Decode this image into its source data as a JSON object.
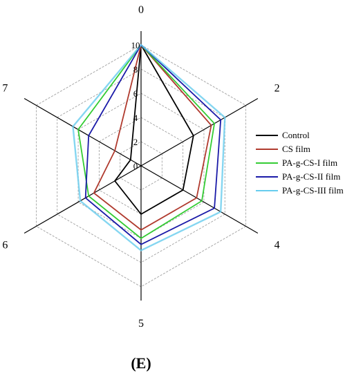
{
  "chart_data": {
    "type": "radar",
    "panel_label": "(E)",
    "axes": [
      "0",
      "2",
      "4",
      "5",
      "6",
      "7"
    ],
    "ticks": [
      "0",
      "2",
      "4",
      "6",
      "8",
      "10"
    ],
    "rlim": [
      0,
      10
    ],
    "legend": {
      "placement": "right"
    },
    "series": [
      {
        "name": "Control",
        "color": "#000000",
        "values": [
          10,
          5,
          4,
          4,
          2.5,
          1
        ]
      },
      {
        "name": "CS film",
        "color": "#b03a2e",
        "values": [
          10,
          6.7,
          5.3,
          5.3,
          4.5,
          2.5
        ]
      },
      {
        "name": "PA-g-CS-I film",
        "color": "#33cc33",
        "values": [
          10,
          7,
          5.8,
          6,
          5,
          6
        ]
      },
      {
        "name": "PA-g-CS-II film",
        "color": "#1a1aa8",
        "values": [
          10,
          7.6,
          7,
          6.5,
          5.3,
          5
        ]
      },
      {
        "name": "PA-g-CS-III film",
        "color": "#66ccee",
        "values": [
          10,
          8,
          7.6,
          7,
          5.8,
          6.5
        ]
      }
    ]
  }
}
